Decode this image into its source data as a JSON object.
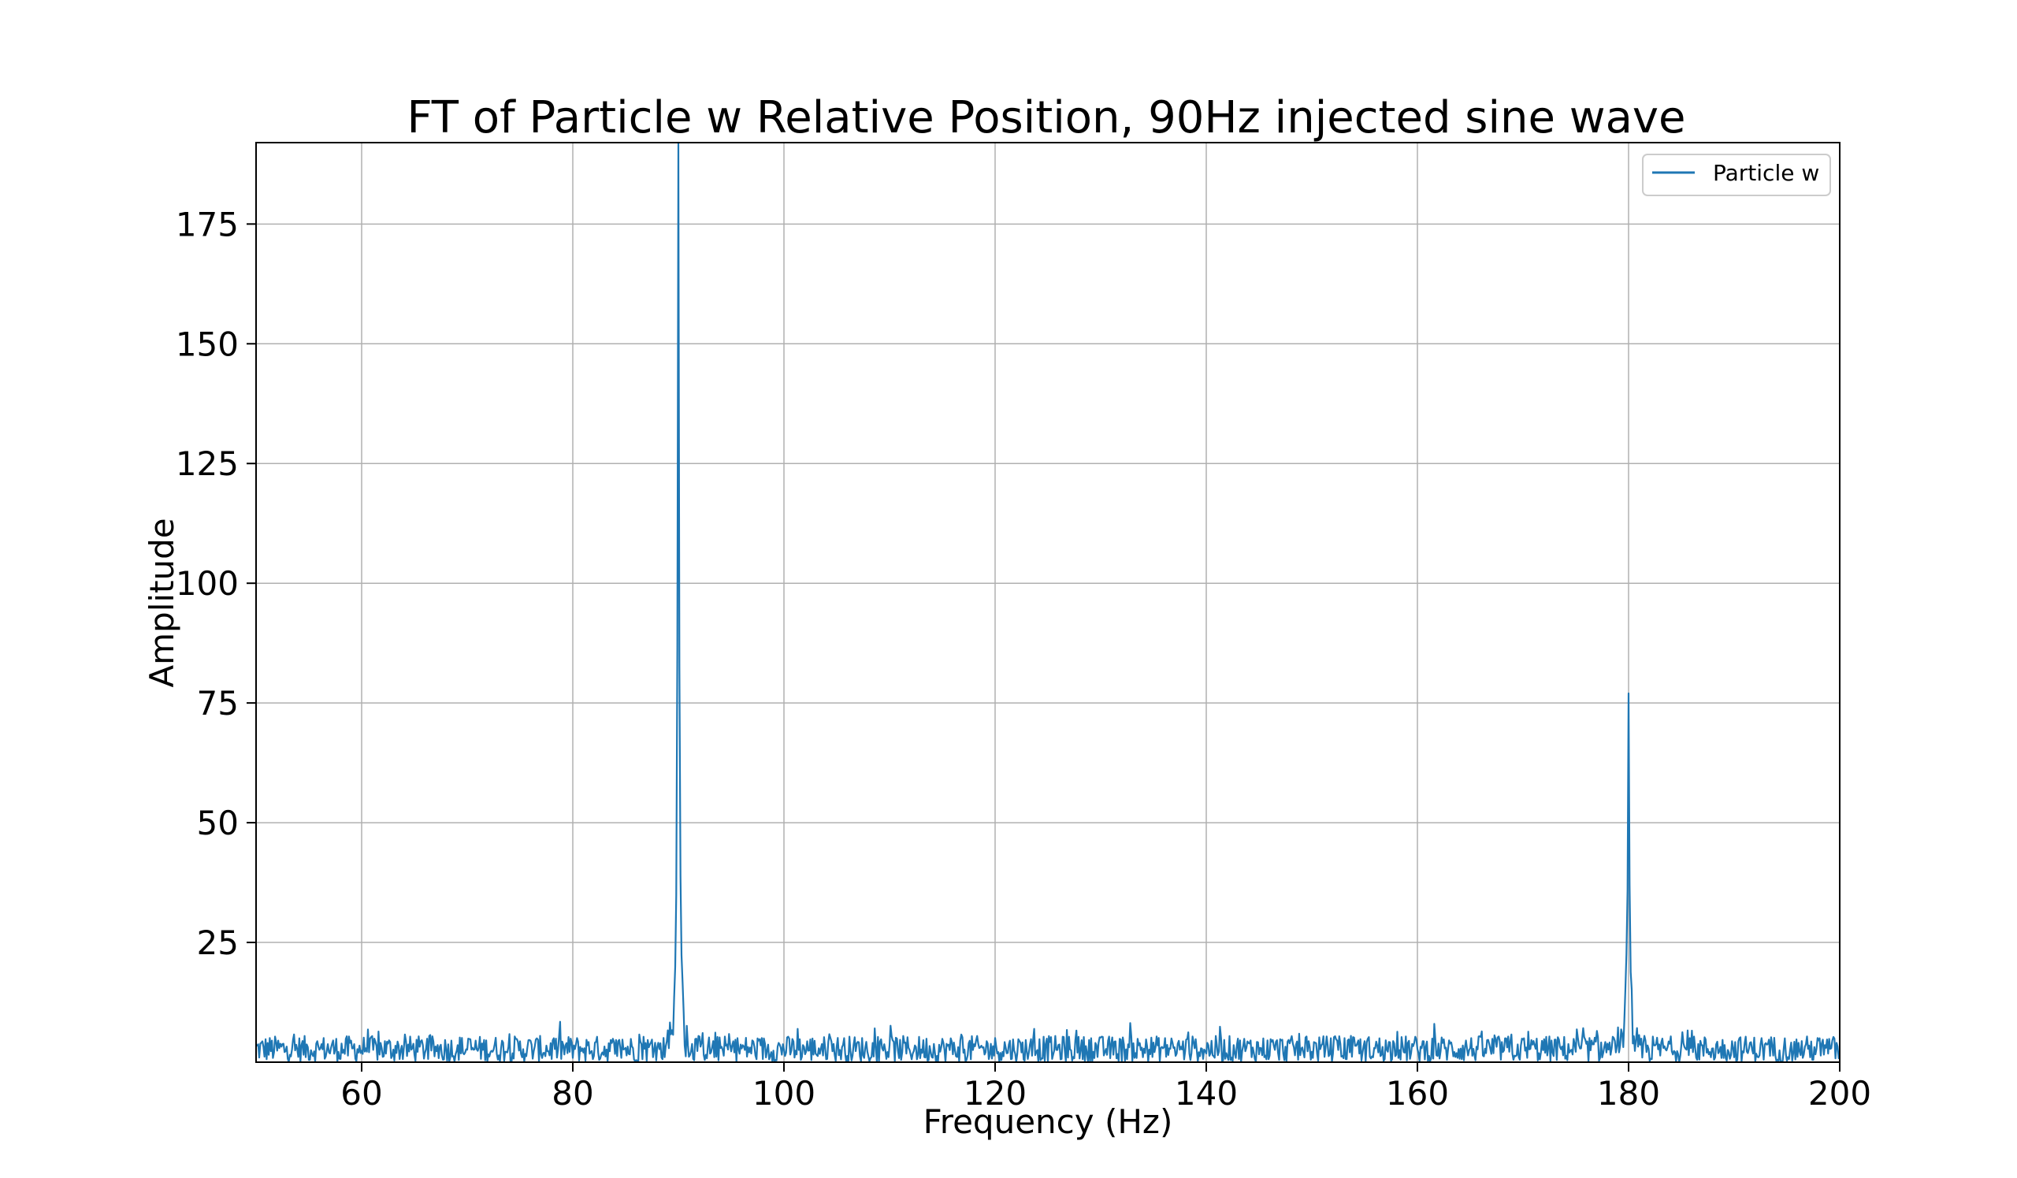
{
  "chart_data": {
    "type": "line",
    "title": "FT of Particle w Relative Position, 90Hz injected sine wave",
    "xlabel": "Frequency (Hz)",
    "ylabel": "Amplitude",
    "xlim": [
      50,
      200
    ],
    "ylim": [
      0,
      192
    ],
    "xticks": [
      60,
      80,
      100,
      120,
      140,
      160,
      180,
      200
    ],
    "yticks": [
      25,
      50,
      75,
      100,
      125,
      150,
      175
    ],
    "grid": true,
    "legend": {
      "position": "top-right"
    },
    "series": [
      {
        "name": "Particle w",
        "color": "#1f77b4",
        "noise_floor": 2.5,
        "peaks": [
          {
            "x": 90,
            "y": 192
          },
          {
            "x": 180,
            "y": 77
          }
        ]
      }
    ]
  }
}
